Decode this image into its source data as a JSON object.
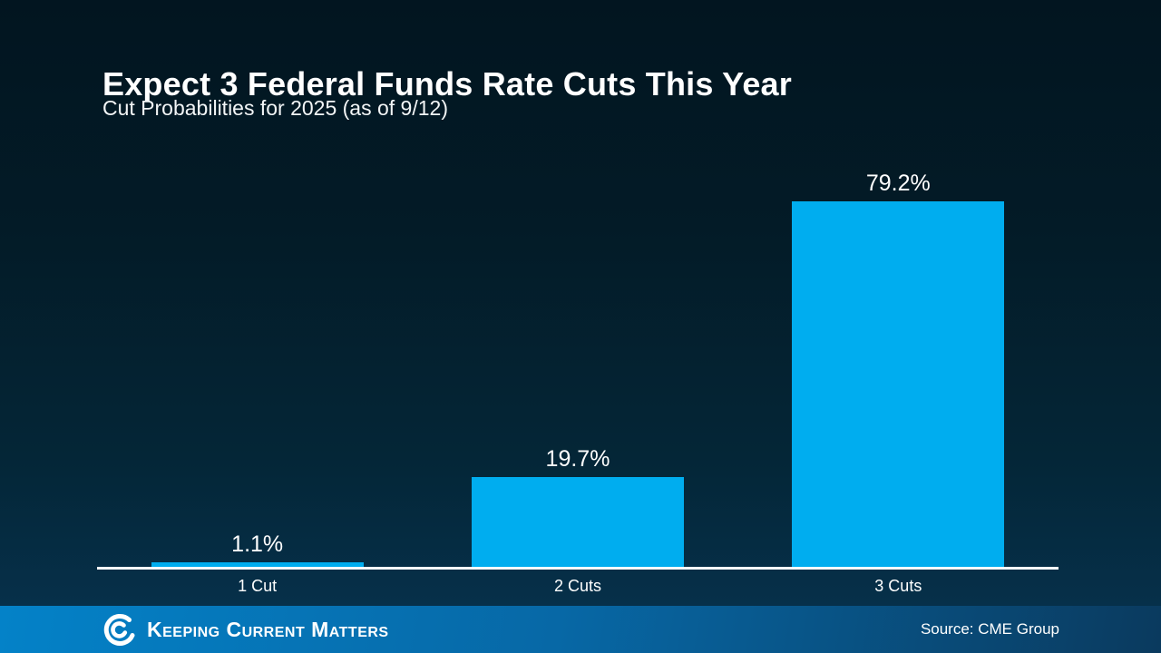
{
  "header": {
    "title": "Expect 3 Federal Funds Rate Cuts This Year",
    "subtitle": "Cut Probabilities for 2025 (as of 9/12)"
  },
  "chart_data": {
    "type": "bar",
    "title": "Cut Probabilities for 2025 (as of 9/12)",
    "categories": [
      "1 Cut",
      "2 Cuts",
      "3 Cuts"
    ],
    "values": [
      1.1,
      19.7,
      79.2
    ],
    "value_labels": [
      "1.1%",
      "19.7%",
      "79.2%"
    ],
    "xlabel": "",
    "ylabel": "",
    "ylim": [
      0,
      100
    ],
    "grid": false,
    "legend": false,
    "bar_color": "#00ADEF",
    "axis_color": "#FFFFFF",
    "label_color": "#FFFFFF"
  },
  "footer": {
    "brand": "Keeping Current Matters",
    "source": "Source: CME Group",
    "gradient_left": "#0482C8",
    "gradient_right": "#0A3A5E"
  },
  "colors": {
    "background_top": "#021520",
    "background_bottom": "#06304A",
    "text": "#FFFFFF"
  }
}
